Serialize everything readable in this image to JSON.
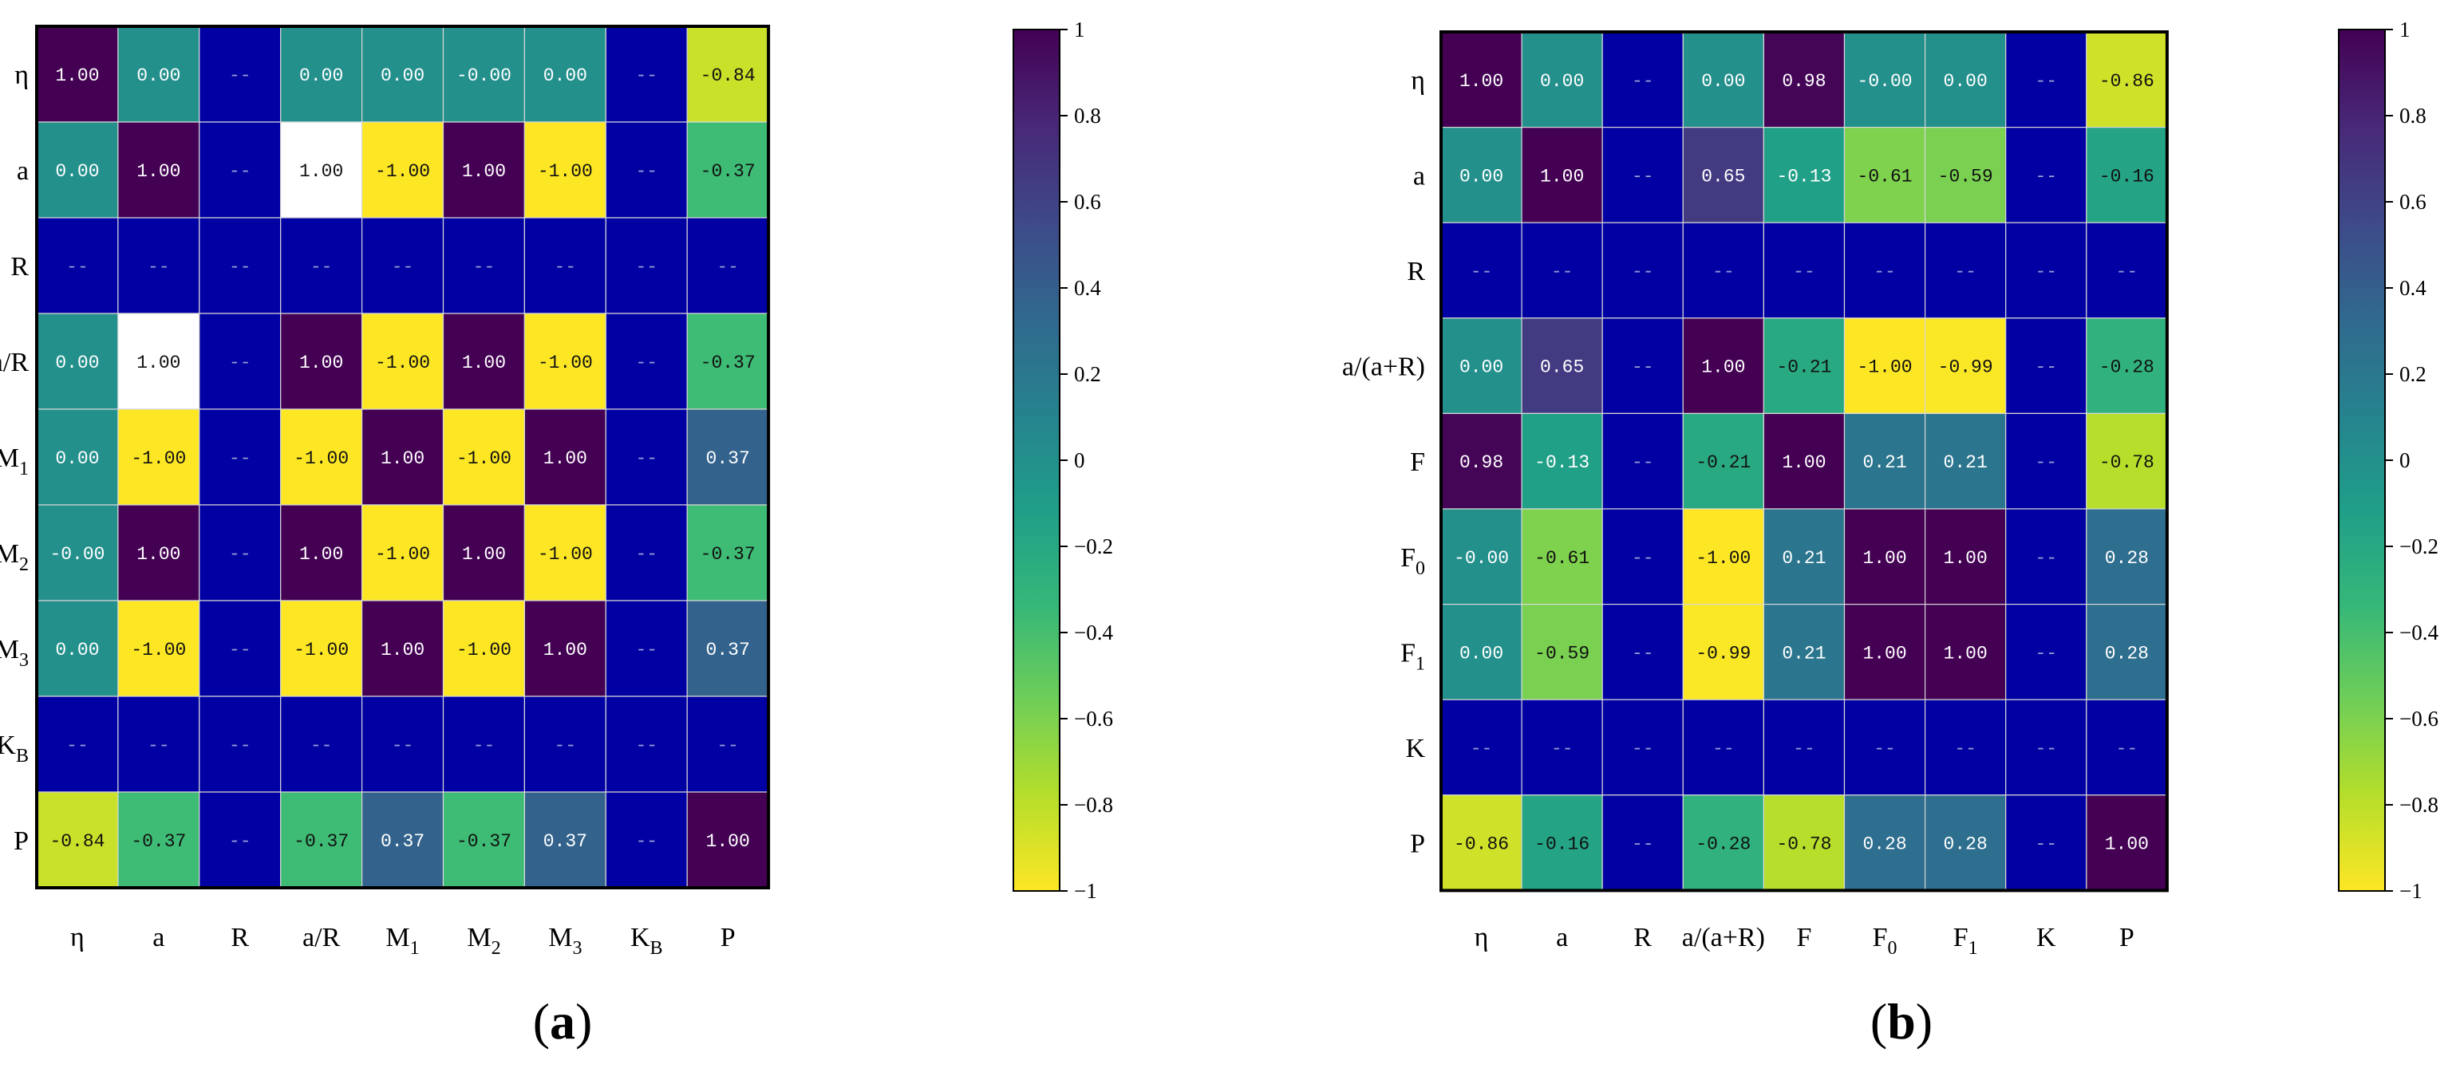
{
  "colors": {
    "background": "#ffffff",
    "frame": "#000000",
    "grid": "#d8d8d8",
    "nan_cell": "#0000a3",
    "text_dark": "#111111",
    "text_light": "#ffffff",
    "viridis": [
      "#440154",
      "#482878",
      "#3e4989",
      "#31688e",
      "#26828e",
      "#1f9e89",
      "#35b779",
      "#6ece58",
      "#b5de2b",
      "#fde725"
    ]
  },
  "chart_data": [
    {
      "type": "heatmap",
      "panel_label": "(a)",
      "row_labels": [
        {
          "main": "η",
          "sub": ""
        },
        {
          "main": "a",
          "sub": ""
        },
        {
          "main": "R",
          "sub": ""
        },
        {
          "main": "a/R",
          "sub": ""
        },
        {
          "main": "M",
          "sub": "1"
        },
        {
          "main": "M",
          "sub": "2"
        },
        {
          "main": "M",
          "sub": "3"
        },
        {
          "main": "K",
          "sub": "B"
        },
        {
          "main": "P",
          "sub": ""
        }
      ],
      "col_labels": [
        {
          "main": "η",
          "sub": ""
        },
        {
          "main": "a",
          "sub": ""
        },
        {
          "main": "R",
          "sub": ""
        },
        {
          "main": "a/R",
          "sub": ""
        },
        {
          "main": "M",
          "sub": "1"
        },
        {
          "main": "M",
          "sub": "2"
        },
        {
          "main": "M",
          "sub": "3"
        },
        {
          "main": "K",
          "sub": "B"
        },
        {
          "main": "P",
          "sub": ""
        }
      ],
      "values": [
        [
          1.0,
          0.0,
          null,
          0.0,
          0.0,
          -0.0,
          0.0,
          null,
          -0.84
        ],
        [
          0.0,
          1.0,
          null,
          1.0,
          -1.0,
          1.0,
          -1.0,
          null,
          -0.37
        ],
        [
          null,
          null,
          null,
          null,
          null,
          null,
          null,
          null,
          null
        ],
        [
          0.0,
          1.0,
          null,
          1.0,
          -1.0,
          1.0,
          -1.0,
          null,
          -0.37
        ],
        [
          0.0,
          -1.0,
          null,
          -1.0,
          1.0,
          -1.0,
          1.0,
          null,
          0.37
        ],
        [
          -0.0,
          1.0,
          null,
          1.0,
          -1.0,
          1.0,
          -1.0,
          null,
          -0.37
        ],
        [
          0.0,
          -1.0,
          null,
          -1.0,
          1.0,
          -1.0,
          1.0,
          null,
          0.37
        ],
        [
          null,
          null,
          null,
          null,
          null,
          null,
          null,
          null,
          null
        ],
        [
          -0.84,
          -0.37,
          null,
          -0.37,
          0.37,
          -0.37,
          0.37,
          null,
          1.0
        ]
      ],
      "labels": [
        [
          "1.00",
          "0.00",
          "--",
          "0.00",
          "0.00",
          "-0.00",
          "0.00",
          "--",
          "-0.84"
        ],
        [
          "0.00",
          "1.00",
          "--",
          "1.00",
          "-1.00",
          "1.00",
          "-1.00",
          "--",
          "-0.37"
        ],
        [
          "--",
          "--",
          "--",
          "--",
          "--",
          "--",
          "--",
          "--",
          "--"
        ],
        [
          "0.00",
          "1.00",
          "--",
          "1.00",
          "-1.00",
          "1.00",
          "-1.00",
          "--",
          "-0.37"
        ],
        [
          "0.00",
          "-1.00",
          "--",
          "-1.00",
          "1.00",
          "-1.00",
          "1.00",
          "--",
          "0.37"
        ],
        [
          "-0.00",
          "1.00",
          "--",
          "1.00",
          "-1.00",
          "1.00",
          "-1.00",
          "--",
          "-0.37"
        ],
        [
          "0.00",
          "-1.00",
          "--",
          "-1.00",
          "1.00",
          "-1.00",
          "1.00",
          "--",
          "0.37"
        ],
        [
          "--",
          "--",
          "--",
          "--",
          "--",
          "--",
          "--",
          "--",
          "--"
        ],
        [
          "-0.84",
          "-0.37",
          "--",
          "-0.37",
          "0.37",
          "-0.37",
          "0.37",
          "--",
          "1.00"
        ]
      ],
      "white_cells": [
        [
          1,
          3
        ],
        [
          3,
          1
        ]
      ],
      "colorbar": {
        "range": [
          -1,
          1
        ],
        "ticks": [
          1,
          0.8,
          0.6,
          0.4,
          0.2,
          0,
          -0.2,
          -0.4,
          -0.6,
          -0.8,
          -1
        ],
        "tick_labels": [
          "1",
          "0.8",
          "0.6",
          "0.4",
          "0.2",
          "0",
          "−0.2",
          "−0.4",
          "−0.6",
          "−0.8",
          "−1"
        ]
      }
    },
    {
      "type": "heatmap",
      "panel_label": "(b)",
      "row_labels": [
        {
          "main": "η",
          "sub": ""
        },
        {
          "main": "a",
          "sub": ""
        },
        {
          "main": "R",
          "sub": ""
        },
        {
          "main": "a/(a+R)",
          "sub": ""
        },
        {
          "main": "F",
          "sub": ""
        },
        {
          "main": "F",
          "sub": "0"
        },
        {
          "main": "F",
          "sub": "1"
        },
        {
          "main": "K",
          "sub": ""
        },
        {
          "main": "P",
          "sub": ""
        }
      ],
      "col_labels": [
        {
          "main": "η",
          "sub": ""
        },
        {
          "main": "a",
          "sub": ""
        },
        {
          "main": "R",
          "sub": ""
        },
        {
          "main": "a/(a+R)",
          "sub": ""
        },
        {
          "main": "F",
          "sub": ""
        },
        {
          "main": "F",
          "sub": "0"
        },
        {
          "main": "F",
          "sub": "1"
        },
        {
          "main": "K",
          "sub": ""
        },
        {
          "main": "P",
          "sub": ""
        }
      ],
      "values": [
        [
          1.0,
          0.0,
          null,
          0.0,
          0.98,
          -0.0,
          0.0,
          null,
          -0.86
        ],
        [
          0.0,
          1.0,
          null,
          0.65,
          -0.13,
          -0.61,
          -0.59,
          null,
          -0.16
        ],
        [
          null,
          null,
          null,
          null,
          null,
          null,
          null,
          null,
          null
        ],
        [
          0.0,
          0.65,
          null,
          1.0,
          -0.21,
          -1.0,
          -0.99,
          null,
          -0.28
        ],
        [
          0.98,
          -0.13,
          null,
          -0.21,
          1.0,
          0.21,
          0.21,
          null,
          -0.78
        ],
        [
          -0.0,
          -0.61,
          null,
          -1.0,
          0.21,
          1.0,
          1.0,
          null,
          0.28
        ],
        [
          0.0,
          -0.59,
          null,
          -0.99,
          0.21,
          1.0,
          1.0,
          null,
          0.28
        ],
        [
          null,
          null,
          null,
          null,
          null,
          null,
          null,
          null,
          null
        ],
        [
          -0.86,
          -0.16,
          null,
          -0.28,
          -0.78,
          0.28,
          0.28,
          null,
          1.0
        ]
      ],
      "labels": [
        [
          "1.00",
          "0.00",
          "--",
          "0.00",
          "0.98",
          "-0.00",
          "0.00",
          "--",
          "-0.86"
        ],
        [
          "0.00",
          "1.00",
          "--",
          "0.65",
          "-0.13",
          "-0.61",
          "-0.59",
          "--",
          "-0.16"
        ],
        [
          "--",
          "--",
          "--",
          "--",
          "--",
          "--",
          "--",
          "--",
          "--"
        ],
        [
          "0.00",
          "0.65",
          "--",
          "1.00",
          "-0.21",
          "-1.00",
          "-0.99",
          "--",
          "-0.28"
        ],
        [
          "0.98",
          "-0.13",
          "--",
          "-0.21",
          "1.00",
          "0.21",
          "0.21",
          "--",
          "-0.78"
        ],
        [
          "-0.00",
          "-0.61",
          "--",
          "-1.00",
          "0.21",
          "1.00",
          "1.00",
          "--",
          "0.28"
        ],
        [
          "0.00",
          "-0.59",
          "--",
          "-0.99",
          "0.21",
          "1.00",
          "1.00",
          "--",
          "0.28"
        ],
        [
          "--",
          "--",
          "--",
          "--",
          "--",
          "--",
          "--",
          "--",
          "--"
        ],
        [
          "-0.86",
          "-0.16",
          "--",
          "-0.28",
          "-0.78",
          "0.28",
          "0.28",
          "--",
          "1.00"
        ]
      ],
      "white_cells": [],
      "colorbar": {
        "range": [
          -1,
          1
        ],
        "ticks": [
          1,
          0.8,
          0.6,
          0.4,
          0.2,
          0,
          -0.2,
          -0.4,
          -0.6,
          -0.8,
          -1
        ],
        "tick_labels": [
          "1",
          "0.8",
          "0.6",
          "0.4",
          "0.2",
          "0",
          "−0.2",
          "−0.4",
          "−0.6",
          "−0.8",
          "−1"
        ]
      }
    }
  ]
}
